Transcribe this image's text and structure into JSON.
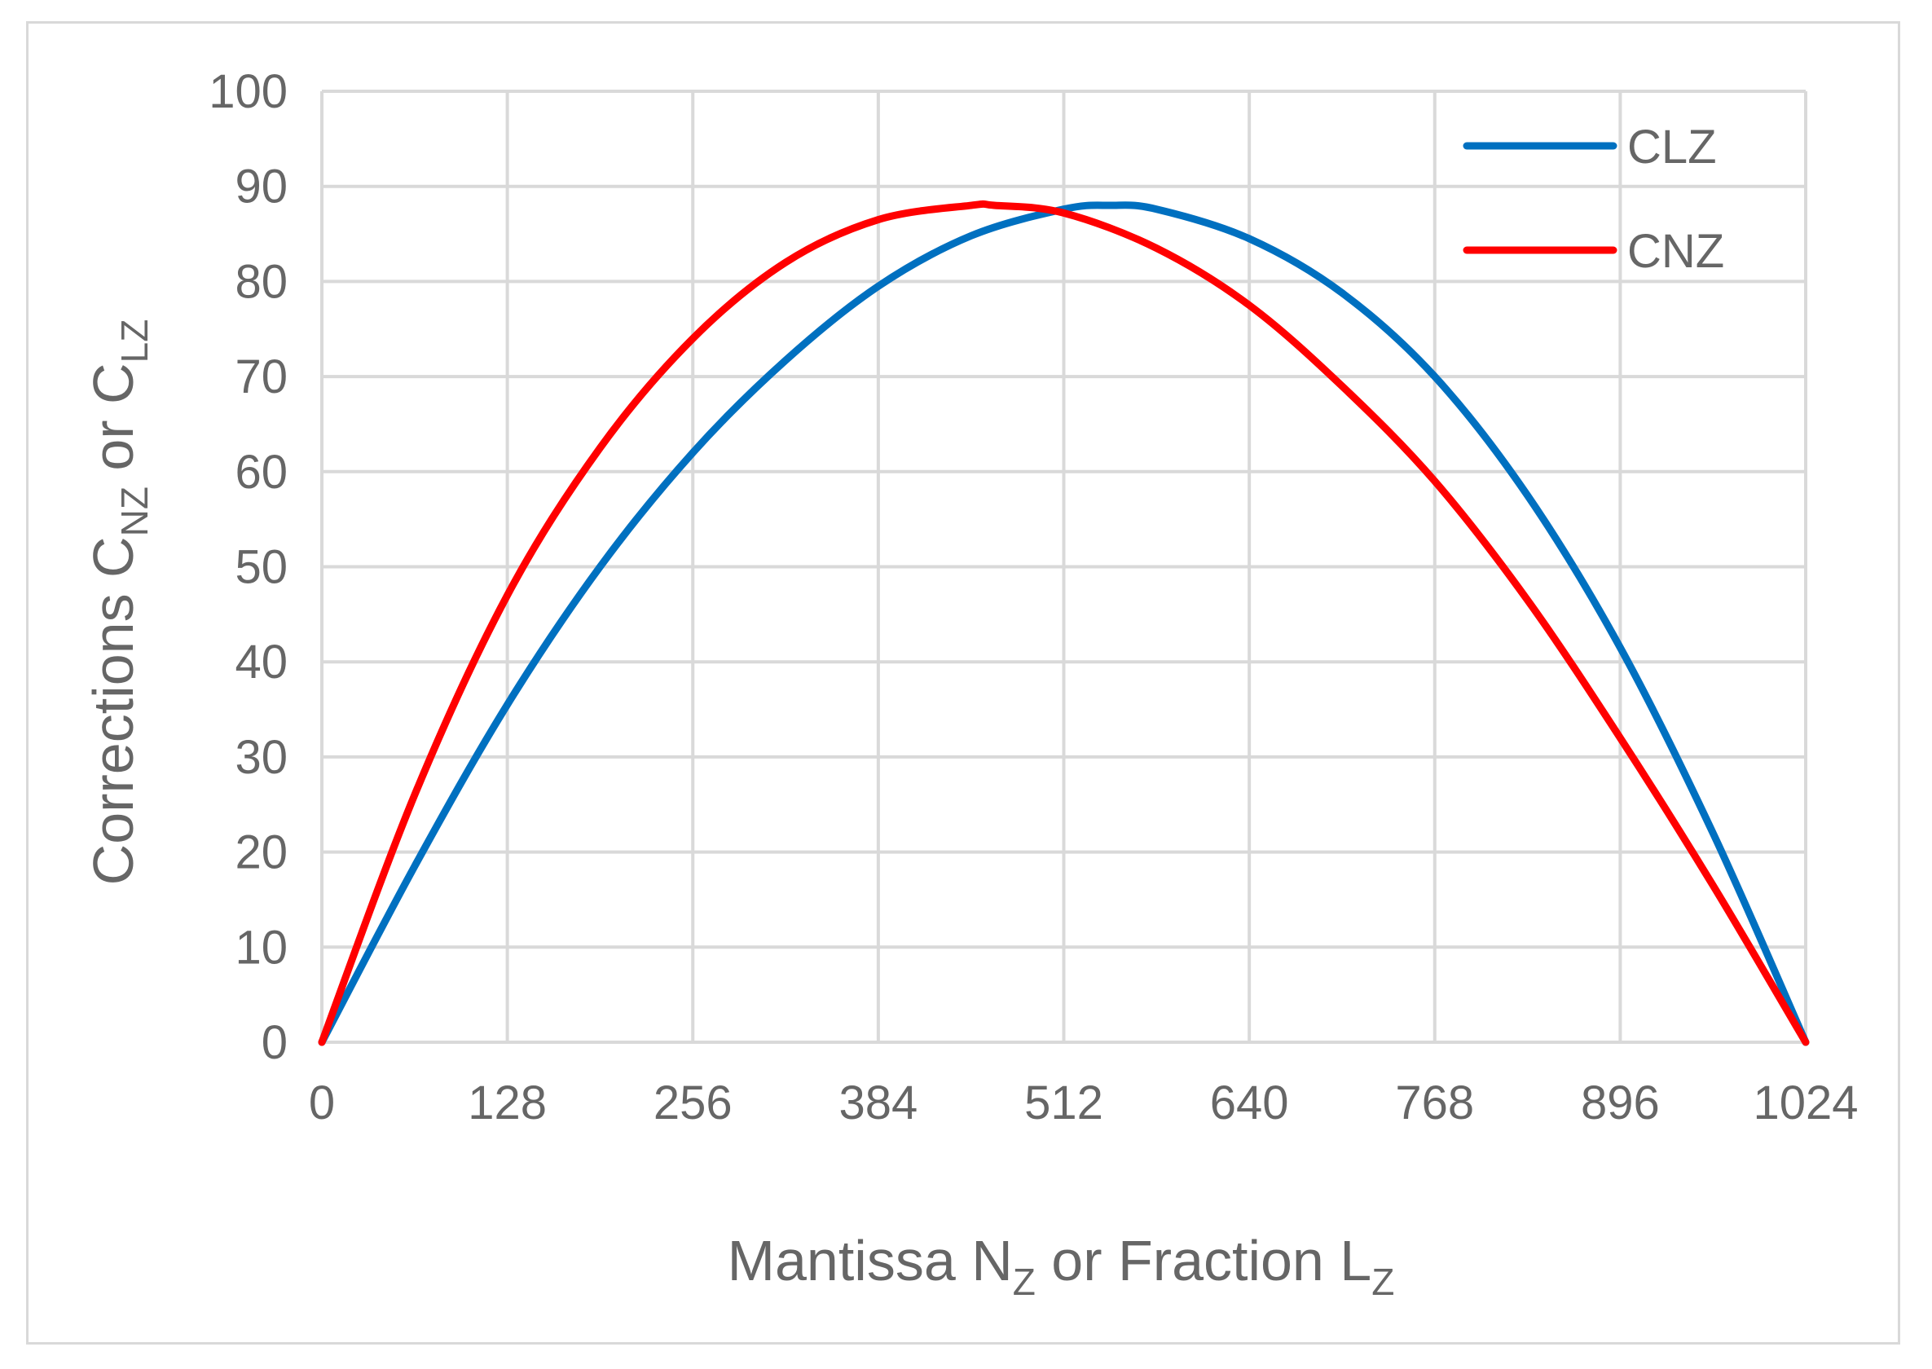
{
  "chart_data": {
    "type": "line",
    "xlabel": {
      "main": "Mantissa N",
      "sub1": "Z",
      "mid": " or Fraction L",
      "sub2": "Z"
    },
    "ylabel": {
      "main": "Corrections C",
      "sub1": "NZ",
      "mid": " or C",
      "sub2": "LZ"
    },
    "xlim": [
      0,
      1024
    ],
    "ylim": [
      0,
      100
    ],
    "x_ticks": [
      0,
      128,
      256,
      384,
      512,
      640,
      768,
      896,
      1024
    ],
    "y_ticks": [
      0,
      10,
      20,
      30,
      40,
      50,
      60,
      70,
      80,
      90,
      100
    ],
    "grid": true,
    "legend_position": "top-right",
    "series": [
      {
        "name": "CLZ",
        "color": "#0070c0",
        "x": [
          0,
          64,
          128,
          192,
          256,
          320,
          384,
          448,
          512,
          544,
          576,
          640,
          704,
          768,
          832,
          896,
          960,
          1024
        ],
        "y": [
          0,
          18.5,
          35.5,
          50.0,
          62.0,
          71.7,
          79.5,
          84.8,
          87.6,
          88.0,
          87.6,
          84.5,
          78.8,
          70.0,
          57.5,
          41.5,
          22.0,
          0
        ]
      },
      {
        "name": "CNZ",
        "color": "#ff0000",
        "x": [
          0,
          64,
          128,
          192,
          256,
          320,
          384,
          448,
          464,
          512,
          576,
          640,
          704,
          768,
          832,
          896,
          960,
          1024
        ],
        "y": [
          0,
          26.0,
          47.0,
          62.5,
          74.0,
          82.0,
          86.5,
          88.0,
          88.0,
          87.2,
          83.5,
          77.5,
          69.0,
          59.0,
          46.5,
          32.0,
          16.5,
          0
        ]
      }
    ]
  }
}
